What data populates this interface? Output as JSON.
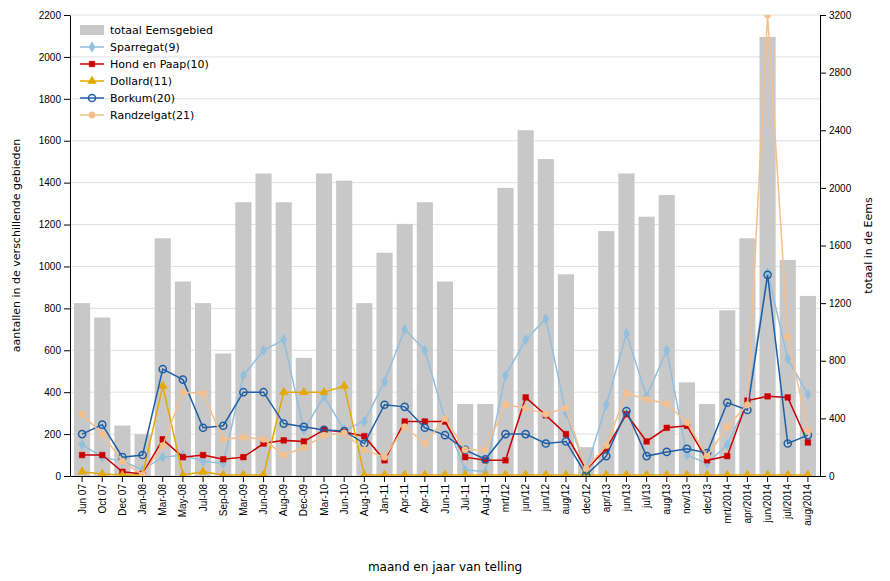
{
  "chart_data": {
    "type": "bar",
    "xlabel": "maand en jaar van telling",
    "ylabel": "aantallen in de verschillende gebieden",
    "y2label": "totaal in de Eems",
    "categories": [
      "Jun 07",
      "Oct 07",
      "Dec 07",
      "Jan-08",
      "Mar-08",
      "May-08",
      "Jul-08",
      "Sep-08",
      "Mar-09",
      "Jun-09",
      "Aug-09",
      "Dec-09",
      "Mar-10",
      "Jun-10",
      "Aug-10",
      "Jan-11",
      "Apr-11",
      "Apr-11",
      "Jun-11",
      "Jul-11",
      "Aug-11",
      "mrt/12",
      "jun/12",
      "jun/12",
      "aug/12",
      "dec/12",
      "apr/13",
      "jun/13",
      "jul/13",
      "aug/13",
      "nov/13",
      "dec/13",
      "mrt/2014",
      "apr/2014",
      "jun/2014",
      "jul/2014",
      "aug/2014"
    ],
    "ylim": [
      0,
      2200
    ],
    "yticks": [
      0,
      200,
      400,
      600,
      800,
      1000,
      1200,
      1400,
      1600,
      1800,
      2000,
      2200
    ],
    "y2lim": [
      0,
      3200
    ],
    "y2ticks": [
      0,
      400,
      800,
      1200,
      1600,
      2000,
      2400,
      2800,
      3200
    ],
    "grid": true,
    "legend": "upper left",
    "series": [
      {
        "name": "totaal Eemsgebied",
        "type": "bar",
        "axis": "y2",
        "color": "#c8c8c8",
        "values": [
          1200,
          1100,
          350,
          290,
          1650,
          1350,
          1200,
          850,
          1900,
          2100,
          1900,
          820,
          2100,
          2050,
          1200,
          1550,
          1750,
          1900,
          1350,
          500,
          500,
          2000,
          2400,
          2200,
          1400,
          200,
          1700,
          2100,
          1800,
          1950,
          650,
          500,
          1150,
          1650,
          3048,
          1500,
          1250
        ]
      },
      {
        "name": "Sparregat(9)",
        "type": "line",
        "marker": "diamond",
        "color": "#92bfde",
        "values": [
          150,
          90,
          70,
          30,
          90,
          100,
          70,
          60,
          480,
          600,
          650,
          220,
          380,
          220,
          260,
          450,
          700,
          600,
          270,
          30,
          20,
          480,
          650,
          750,
          300,
          30,
          340,
          680,
          380,
          600,
          100,
          60,
          150,
          350,
          970,
          560,
          390
        ]
      },
      {
        "name": "Hond en Paap(10)",
        "type": "line",
        "marker": "square",
        "color": "#cc0000",
        "values": [
          100,
          100,
          20,
          10,
          175,
          90,
          100,
          80,
          90,
          155,
          170,
          165,
          220,
          210,
          190,
          75,
          260,
          260,
          260,
          90,
          75,
          75,
          375,
          290,
          200,
          30,
          130,
          295,
          165,
          230,
          240,
          75,
          95,
          360,
          380,
          375,
          160
        ]
      },
      {
        "name": "Dollard(11)",
        "type": "line",
        "marker": "triangle",
        "color": "#e6a800",
        "values": [
          20,
          10,
          5,
          5,
          430,
          5,
          20,
          5,
          5,
          5,
          400,
          400,
          400,
          430,
          5,
          5,
          5,
          5,
          5,
          5,
          5,
          5,
          5,
          5,
          5,
          5,
          5,
          5,
          5,
          5,
          5,
          5,
          5,
          5,
          5,
          5,
          5
        ]
      },
      {
        "name": "Borkum(20)",
        "type": "line",
        "marker": "circle-open",
        "color": "#1f5fa6",
        "values": [
          200,
          245,
          90,
          100,
          510,
          460,
          230,
          240,
          400,
          400,
          250,
          235,
          220,
          215,
          155,
          340,
          330,
          230,
          195,
          125,
          80,
          200,
          200,
          155,
          165,
          5,
          95,
          310,
          95,
          115,
          130,
          110,
          350,
          315,
          960,
          155,
          195
        ]
      },
      {
        "name": "Randzelgat(21)",
        "type": "line",
        "marker": "circle",
        "color": "#f5c08c",
        "values": [
          295,
          200,
          70,
          5,
          145,
          400,
          395,
          175,
          185,
          175,
          100,
          135,
          195,
          205,
          125,
          90,
          235,
          155,
          275,
          125,
          125,
          340,
          325,
          295,
          325,
          35,
          145,
          395,
          365,
          345,
          255,
          95,
          235,
          340,
          2200,
          665,
          215
        ]
      }
    ]
  }
}
